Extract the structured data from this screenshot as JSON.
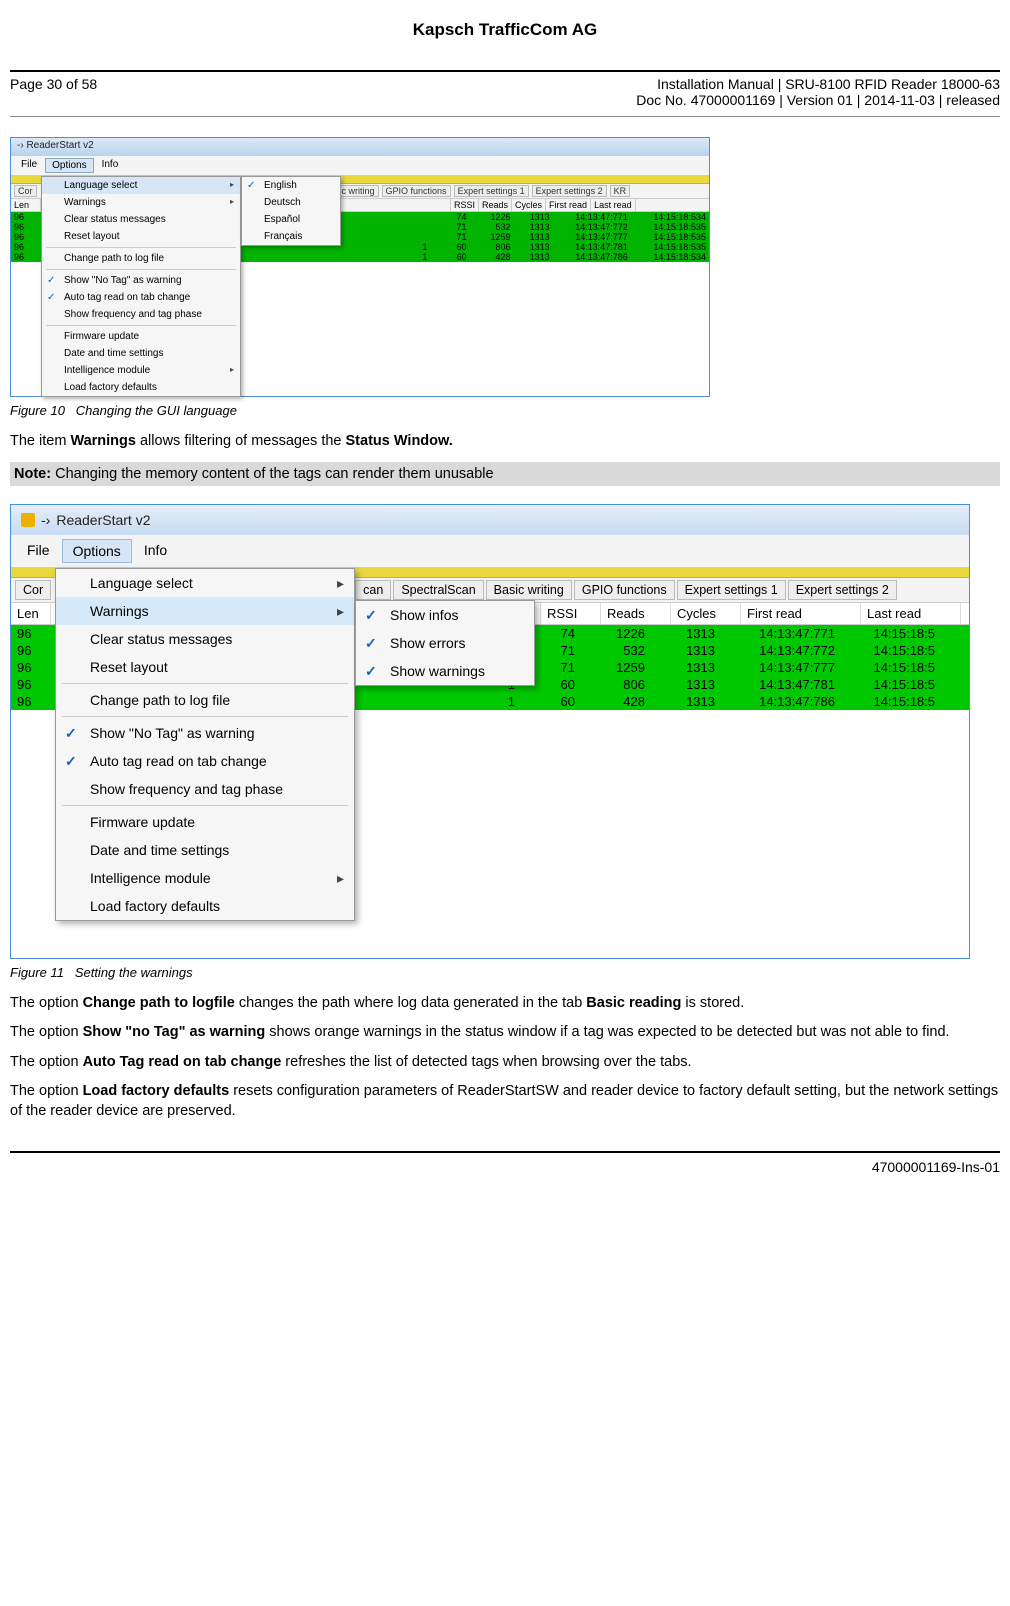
{
  "doc": {
    "company": "Kapsch TrafficCom AG",
    "page_left": "Page 30 of 58",
    "header_r1": "Installation Manual | SRU-8100 RFID Reader 18000-63",
    "header_r2": "Doc No. 47000001169 | Version 01 | 2014-11-03 | released",
    "footer": "47000001169-Ins-01"
  },
  "fig10": {
    "caption_prefix": "Figure 10",
    "caption_text": "Changing the GUI language"
  },
  "fig11": {
    "caption_prefix": "Figure 11",
    "caption_text": "Setting the warnings"
  },
  "para1_a": "The item ",
  "para1_b": "Warnings",
  "para1_c": " allows filtering of messages the ",
  "para1_d": "Status Window.",
  "note_a": "Note:",
  "note_b": " Changing the memory content of the tags can render them unusable",
  "para2_a": "The option ",
  "para2_b": "Change path to logfile",
  "para2_c": " changes the path where log data generated in the tab ",
  "para2_d": "Basic reading",
  "para2_e": " is stored.",
  "para3_a": "The option ",
  "para3_b": "Show \"no Tag\" as warning",
  "para3_c": " shows orange warnings in the status window if a tag was expected to be detected but was not able to find.",
  "para4_a": "The option ",
  "para4_b": "Auto Tag read on tab change",
  "para4_c": " refreshes the list of detected tags when browsing over the tabs.",
  "para5_a": "The option ",
  "para5_b": "Load factory defaults",
  "para5_c": " resets configuration parameters of ReaderStartSW and reader device to factory default setting, but the network settings of the reader device are preserved.",
  "app_title": "ReaderStart v2",
  "menubar": {
    "file": "File",
    "options": "Options",
    "info": "Info"
  },
  "tabs1": [
    "Cor",
    "c writing",
    "GPIO functions",
    "Expert settings 1",
    "Expert settings 2",
    "KR"
  ],
  "tabs2": [
    "Cor",
    "can",
    "SpectralScan",
    "Basic writing",
    "GPIO functions",
    "Expert settings 1",
    "Expert settings 2"
  ],
  "cols": {
    "len": "Len",
    "rssi": "RSSI",
    "reads": "Reads",
    "cycles": "Cycles",
    "first": "First read",
    "last": "Last read"
  },
  "rows1": [
    {
      "len": "96",
      "rssi": "74",
      "reads": "1226",
      "cyc": "1313",
      "fr": "14:13:47:771",
      "lr": "14:15:18:534"
    },
    {
      "len": "96",
      "rssi": "71",
      "reads": "532",
      "cyc": "1313",
      "fr": "14:13:47:772",
      "lr": "14:15:18:535"
    },
    {
      "len": "96",
      "rssi": "71",
      "reads": "1259",
      "cyc": "1313",
      "fr": "14:13:47:777",
      "lr": "14:15:18:535"
    },
    {
      "len": "96",
      "rssi": "60",
      "reads": "806",
      "cyc": "1313",
      "fr": "14:13:47:781",
      "lr": "14:15:18:535",
      "pre": "1"
    },
    {
      "len": "96",
      "rssi": "60",
      "reads": "428",
      "cyc": "1313",
      "fr": "14:13:47:786",
      "lr": "14:15:18:534",
      "pre": "1"
    }
  ],
  "rows2": [
    {
      "len": "96",
      "rssi": "74",
      "reads": "1226",
      "cyc": "1313",
      "fr": "14:13:47:771",
      "lr": "14:15:18:5"
    },
    {
      "len": "96",
      "rssi": "71",
      "reads": "532",
      "cyc": "1313",
      "fr": "14:13:47:772",
      "lr": "14:15:18:5"
    },
    {
      "len": "96",
      "rssi": "71",
      "reads": "1259",
      "cyc": "1313",
      "fr": "14:13:47:777",
      "lr": "14:15:18:5"
    },
    {
      "len": "96",
      "rssi": "60",
      "reads": "806",
      "cyc": "1313",
      "fr": "14:13:47:781",
      "lr": "14:15:18:5",
      "pre": "1"
    },
    {
      "len": "96",
      "rssi": "60",
      "reads": "428",
      "cyc": "1313",
      "fr": "14:13:47:786",
      "lr": "14:15:18:5",
      "pre": "1"
    }
  ],
  "options_menu": {
    "language_select": "Language select",
    "warnings": "Warnings",
    "clear_status": "Clear status messages",
    "reset_layout": "Reset layout",
    "change_path": "Change path to log file",
    "show_no_tag": "Show \"No Tag\" as warning",
    "auto_tag": "Auto tag read on tab change",
    "show_freq": "Show frequency and tag phase",
    "firmware": "Firmware update",
    "date_time": "Date and time settings",
    "intelligence": "Intelligence module",
    "load_factory": "Load factory defaults"
  },
  "lang_sub": {
    "en": "English",
    "de": "Deutsch",
    "es": "Español",
    "fr": "Français"
  },
  "warn_sub": {
    "infos": "Show infos",
    "errors": "Show errors",
    "warnings": "Show warnings"
  }
}
